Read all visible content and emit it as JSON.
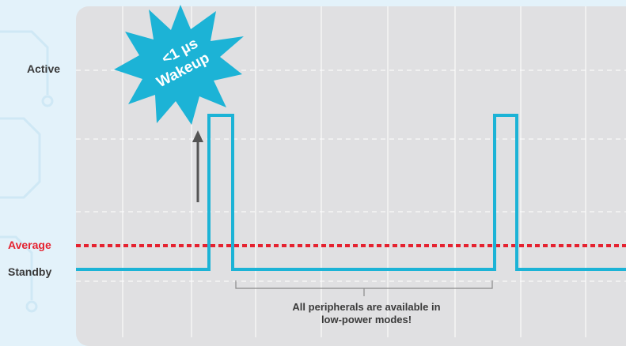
{
  "y_labels": {
    "active": "Active",
    "average": "Average",
    "standby": "Standby"
  },
  "callout": {
    "line1": "<1 µs",
    "line2": "Wakeup"
  },
  "note": {
    "line1": "All peripherals are available in",
    "line2": "low-power modes!"
  },
  "colors": {
    "signal": "#1cb3d6",
    "average_line": "#e52230",
    "panel": "#e0e0e2",
    "arrow": "#555555",
    "text": "#3a3a3a"
  }
}
